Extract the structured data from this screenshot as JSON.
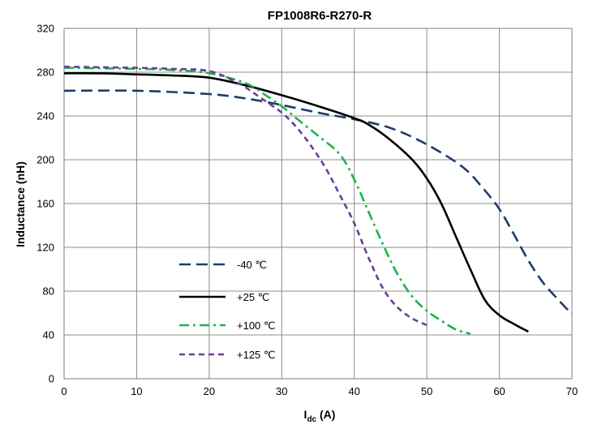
{
  "chart_data": {
    "type": "line",
    "title": "FP1008R6-R270-R",
    "xlabel": "I",
    "xlabel_sub": "dc",
    "xlabel_unit": " (A)",
    "ylabel": "Inductance (nH)",
    "xlim": [
      0,
      70
    ],
    "ylim": [
      0,
      320
    ],
    "xticks": [
      0,
      10,
      20,
      30,
      40,
      50,
      60,
      70
    ],
    "yticks": [
      0,
      40,
      80,
      120,
      160,
      200,
      240,
      280,
      320
    ],
    "grid": true,
    "legend_position": "lower-left",
    "series": [
      {
        "name": "-40 ℃",
        "color": "#1f3d6b",
        "dash": "dash",
        "points": [
          [
            0,
            263
          ],
          [
            10,
            263
          ],
          [
            20,
            260
          ],
          [
            25,
            256
          ],
          [
            30,
            250
          ],
          [
            35,
            243
          ],
          [
            40,
            237
          ],
          [
            45,
            229
          ],
          [
            50,
            214
          ],
          [
            55,
            193
          ],
          [
            58,
            172
          ],
          [
            60,
            155
          ],
          [
            62,
            132
          ],
          [
            64,
            108
          ],
          [
            66,
            88
          ],
          [
            68,
            73
          ],
          [
            70,
            59
          ]
        ]
      },
      {
        "name": "+25 ℃",
        "color": "#000000",
        "dash": "solid",
        "points": [
          [
            0,
            279
          ],
          [
            5,
            279
          ],
          [
            10,
            278
          ],
          [
            15,
            277
          ],
          [
            20,
            275
          ],
          [
            25,
            268
          ],
          [
            30,
            259
          ],
          [
            35,
            249
          ],
          [
            40,
            238
          ],
          [
            42,
            232
          ],
          [
            45,
            218
          ],
          [
            48,
            200
          ],
          [
            50,
            183
          ],
          [
            52,
            160
          ],
          [
            54,
            130
          ],
          [
            56,
            100
          ],
          [
            58,
            72
          ],
          [
            60,
            58
          ],
          [
            62,
            50
          ],
          [
            64,
            43
          ]
        ]
      },
      {
        "name": "+100 ℃",
        "color": "#1db34c",
        "dash": "dashdot",
        "points": [
          [
            0,
            284
          ],
          [
            10,
            283
          ],
          [
            15,
            282
          ],
          [
            20,
            279
          ],
          [
            25,
            270
          ],
          [
            28,
            258
          ],
          [
            30,
            249
          ],
          [
            32,
            238
          ],
          [
            35,
            222
          ],
          [
            38,
            205
          ],
          [
            40,
            182
          ],
          [
            42,
            152
          ],
          [
            44,
            122
          ],
          [
            46,
            95
          ],
          [
            48,
            75
          ],
          [
            50,
            62
          ],
          [
            52,
            53
          ],
          [
            54,
            45
          ],
          [
            56,
            41
          ]
        ]
      },
      {
        "name": "+125 ℃",
        "color": "#6a3d9a",
        "dash": "shortdash",
        "points": [
          [
            0,
            285
          ],
          [
            10,
            284
          ],
          [
            15,
            283
          ],
          [
            20,
            281
          ],
          [
            24,
            270
          ],
          [
            27,
            257
          ],
          [
            30,
            243
          ],
          [
            32,
            230
          ],
          [
            34,
            213
          ],
          [
            36,
            193
          ],
          [
            38,
            168
          ],
          [
            40,
            142
          ],
          [
            42,
            110
          ],
          [
            44,
            82
          ],
          [
            46,
            65
          ],
          [
            48,
            55
          ],
          [
            50,
            49
          ]
        ]
      }
    ]
  }
}
